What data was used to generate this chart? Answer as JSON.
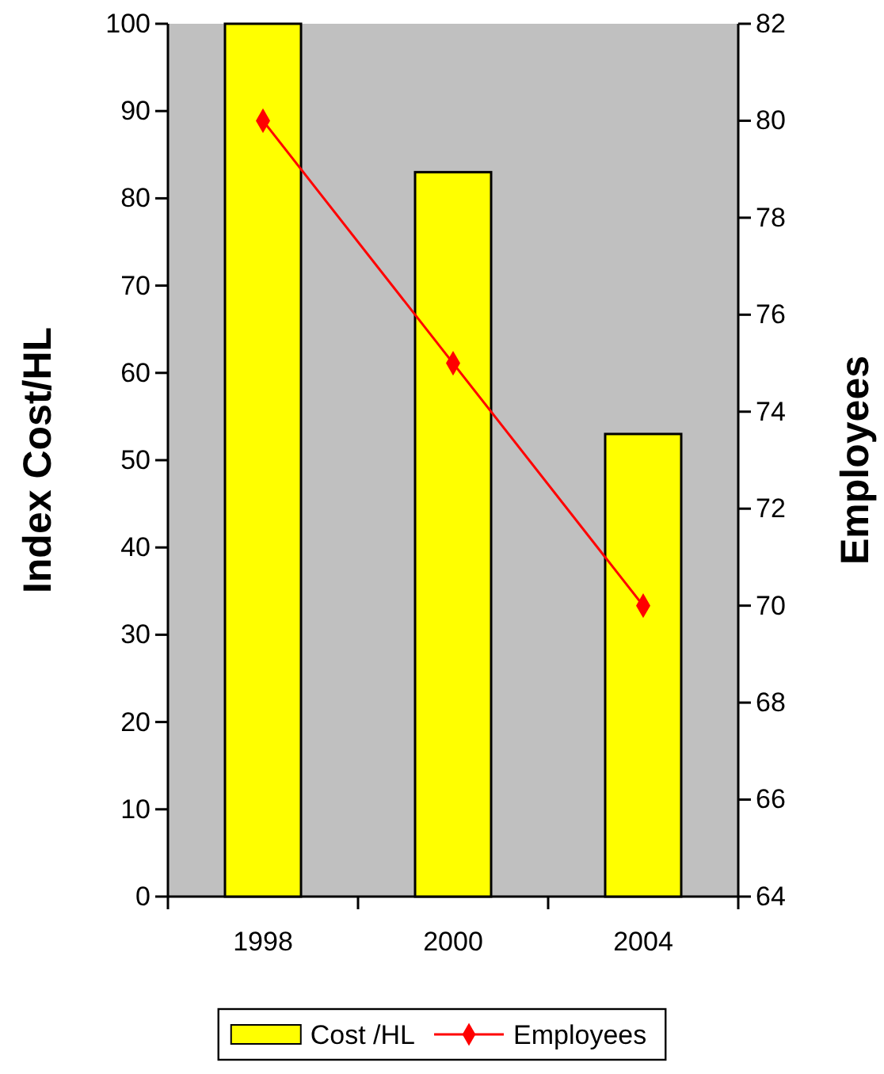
{
  "chart_data": {
    "type": "bar",
    "categories": [
      "1998",
      "2000",
      "2004"
    ],
    "series": [
      {
        "name": "Cost /HL",
        "color": "#ffff00",
        "values": [
          100,
          83,
          53
        ]
      },
      {
        "name": "Employees",
        "type": "line",
        "axis": "y2",
        "color": "#ff0000",
        "values": [
          80,
          75,
          70
        ]
      }
    ],
    "ylabel": "Index Cost/HL",
    "y2label": "Employees",
    "ylim": [
      0,
      100
    ],
    "yticks": [
      0,
      10,
      20,
      30,
      40,
      50,
      60,
      70,
      80,
      90,
      100
    ],
    "y2lim": [
      64,
      82
    ],
    "y2ticks": [
      64,
      66,
      68,
      70,
      72,
      74,
      76,
      78,
      80,
      82
    ],
    "marker": "diamond",
    "line_style": "solid",
    "grid": false,
    "legend": "bottom"
  }
}
